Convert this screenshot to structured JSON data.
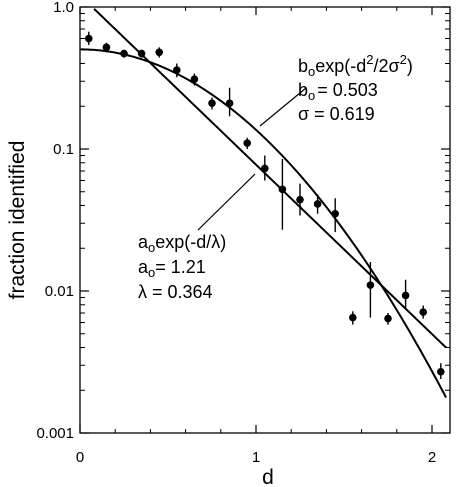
{
  "chart_data": {
    "type": "scatter",
    "xlabel": "d",
    "ylabel": "fraction  identified",
    "xlim": [
      0,
      2.1
    ],
    "ylim": [
      0.001,
      1.0
    ],
    "yscale": "log",
    "grid": false,
    "legend": "none",
    "x_ticks": [
      {
        "value": 0,
        "label": "0"
      },
      {
        "value": 1,
        "label": "1"
      },
      {
        "value": 2,
        "label": "2"
      }
    ],
    "y_ticks": [
      {
        "value": 1.0,
        "label": "1.0"
      },
      {
        "value": 0.1,
        "label": "0.1"
      },
      {
        "value": 0.01,
        "label": "0.01"
      },
      {
        "value": 0.001,
        "label": "0.001"
      }
    ],
    "points": [
      {
        "x": 0.05,
        "y": 0.6,
        "err": [
          0.54,
          0.67
        ]
      },
      {
        "x": 0.15,
        "y": 0.52,
        "err": [
          0.48,
          0.56
        ]
      },
      {
        "x": 0.25,
        "y": 0.47,
        "err": [
          0.44,
          0.5
        ]
      },
      {
        "x": 0.35,
        "y": 0.47,
        "err": [
          0.44,
          0.5
        ]
      },
      {
        "x": 0.45,
        "y": 0.48,
        "err": [
          0.44,
          0.52
        ]
      },
      {
        "x": 0.55,
        "y": 0.36,
        "err": [
          0.32,
          0.4
        ]
      },
      {
        "x": 0.65,
        "y": 0.31,
        "err": [
          0.28,
          0.34
        ]
      },
      {
        "x": 0.75,
        "y": 0.21,
        "err": [
          0.19,
          0.23
        ]
      },
      {
        "x": 0.85,
        "y": 0.21,
        "err": [
          0.17,
          0.27
        ]
      },
      {
        "x": 0.95,
        "y": 0.11,
        "err": [
          0.1,
          0.12
        ]
      },
      {
        "x": 1.05,
        "y": 0.073,
        "err": [
          0.06,
          0.09
        ]
      },
      {
        "x": 1.15,
        "y": 0.052,
        "err": [
          0.027,
          0.085
        ]
      },
      {
        "x": 1.25,
        "y": 0.044,
        "err": [
          0.034,
          0.057
        ]
      },
      {
        "x": 1.35,
        "y": 0.041,
        "err": [
          0.035,
          0.048
        ]
      },
      {
        "x": 1.45,
        "y": 0.035,
        "err": [
          0.026,
          0.045
        ]
      },
      {
        "x": 1.55,
        "y": 0.0065,
        "err": [
          0.0058,
          0.0072
        ]
      },
      {
        "x": 1.65,
        "y": 0.011,
        "err": [
          0.0065,
          0.016
        ]
      },
      {
        "x": 1.75,
        "y": 0.0064,
        "err": [
          0.0058,
          0.007
        ]
      },
      {
        "x": 1.85,
        "y": 0.0093,
        "err": [
          0.0075,
          0.012
        ]
      },
      {
        "x": 1.95,
        "y": 0.0071,
        "err": [
          0.0064,
          0.0079
        ]
      },
      {
        "x": 2.05,
        "y": 0.0027,
        "err": [
          0.0024,
          0.0031
        ]
      }
    ],
    "fits": [
      {
        "kind": "gaussian",
        "b0": 0.503,
        "sigma": 0.619,
        "x_range": [
          0.0,
          2.08
        ]
      },
      {
        "kind": "exponential",
        "a0": 1.21,
        "lambda": 0.364,
        "x_range": [
          0.08,
          2.08
        ]
      }
    ],
    "annotations": {
      "gauss": {
        "formula": {
          "b": "b",
          "o": "o",
          "exp": "exp(-d",
          "sq1": "2",
          "over": "/2σ",
          "sq2": "2",
          "close": ")"
        },
        "param1": {
          "b": "b",
          "o": "o",
          "rest": "= 0.503"
        },
        "param2": "σ = 0.619"
      },
      "expo": {
        "formula": {
          "a": "a",
          "o": "o",
          "rest": "exp(-d/λ)"
        },
        "param1": {
          "a": "a",
          "o": "o",
          "rest": "= 1.21"
        },
        "param2": "λ = 0.364"
      }
    },
    "colors": {
      "ink": "#000000",
      "background": "#ffffff"
    }
  }
}
